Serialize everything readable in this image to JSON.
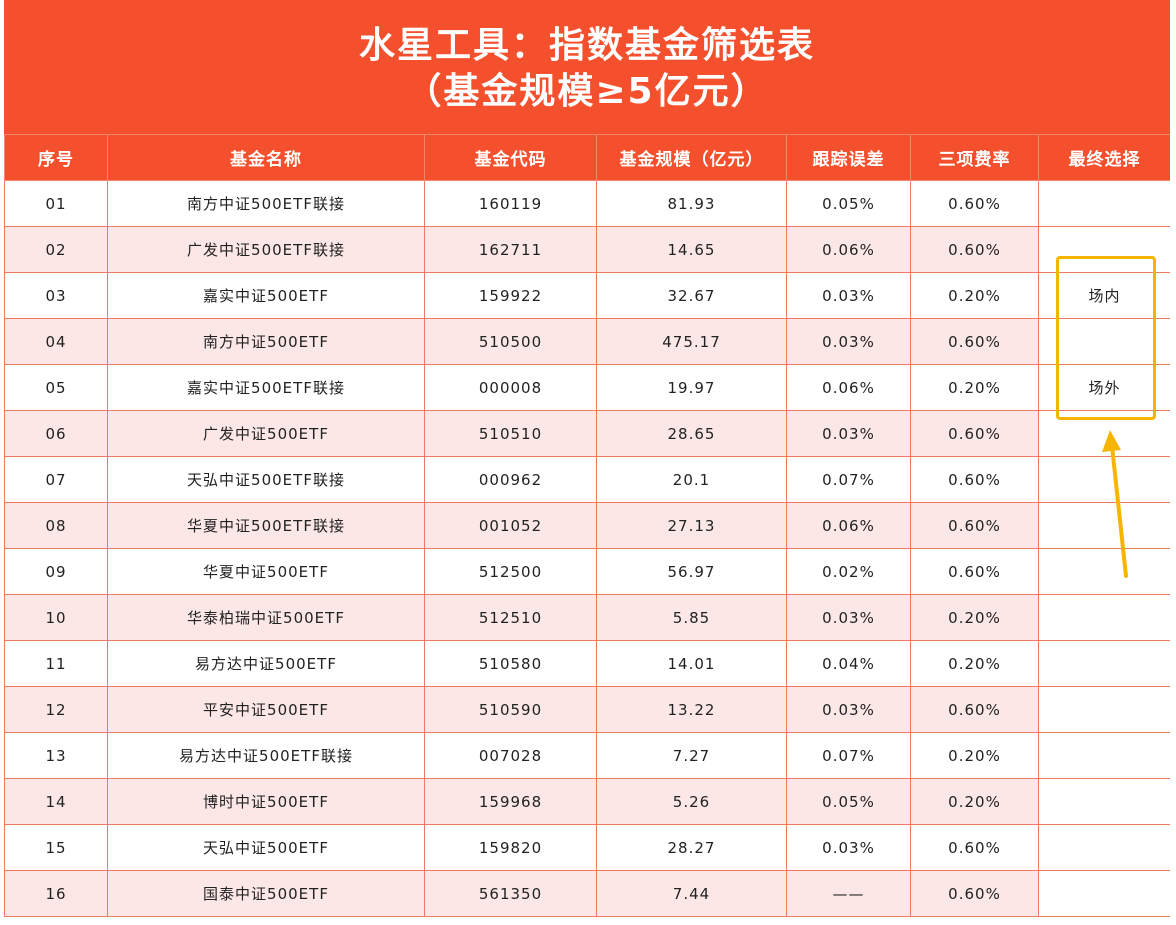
{
  "title": {
    "line1": "水星工具：指数基金筛选表",
    "line2": "（基金规模≥5亿元）"
  },
  "columns": [
    "序号",
    "基金名称",
    "基金代码",
    "基金规模（亿元）",
    "跟踪误差",
    "三项费率",
    "最终选择"
  ],
  "rows": [
    {
      "no": "01",
      "name": "南方中证500ETF联接",
      "code": "160119",
      "size": "81.93",
      "error": "0.05%",
      "fee": "0.60%",
      "choice": ""
    },
    {
      "no": "02",
      "name": "广发中证500ETF联接",
      "code": "162711",
      "size": "14.65",
      "error": "0.06%",
      "fee": "0.60%",
      "choice": ""
    },
    {
      "no": "03",
      "name": "嘉实中证500ETF",
      "code": "159922",
      "size": "32.67",
      "error": "0.03%",
      "fee": "0.20%",
      "choice": "场内"
    },
    {
      "no": "04",
      "name": "南方中证500ETF",
      "code": "510500",
      "size": "475.17",
      "error": "0.03%",
      "fee": "0.60%",
      "choice": ""
    },
    {
      "no": "05",
      "name": "嘉实中证500ETF联接",
      "code": "000008",
      "size": "19.97",
      "error": "0.06%",
      "fee": "0.20%",
      "choice": "场外"
    },
    {
      "no": "06",
      "name": "广发中证500ETF",
      "code": "510510",
      "size": "28.65",
      "error": "0.03%",
      "fee": "0.60%",
      "choice": ""
    },
    {
      "no": "07",
      "name": "天弘中证500ETF联接",
      "code": "000962",
      "size": "20.1",
      "error": "0.07%",
      "fee": "0.60%",
      "choice": ""
    },
    {
      "no": "08",
      "name": "华夏中证500ETF联接",
      "code": "001052",
      "size": "27.13",
      "error": "0.06%",
      "fee": "0.60%",
      "choice": ""
    },
    {
      "no": "09",
      "name": "华夏中证500ETF",
      "code": "512500",
      "size": "56.97",
      "error": "0.02%",
      "fee": "0.60%",
      "choice": ""
    },
    {
      "no": "10",
      "name": "华泰柏瑞中证500ETF",
      "code": "512510",
      "size": "5.85",
      "error": "0.03%",
      "fee": "0.20%",
      "choice": ""
    },
    {
      "no": "11",
      "name": "易方达中证500ETF",
      "code": "510580",
      "size": "14.01",
      "error": "0.04%",
      "fee": "0.20%",
      "choice": ""
    },
    {
      "no": "12",
      "name": "平安中证500ETF",
      "code": "510590",
      "size": "13.22",
      "error": "0.03%",
      "fee": "0.60%",
      "choice": ""
    },
    {
      "no": "13",
      "name": "易方达中证500ETF联接",
      "code": "007028",
      "size": "7.27",
      "error": "0.07%",
      "fee": "0.20%",
      "choice": ""
    },
    {
      "no": "14",
      "name": "博时中证500ETF",
      "code": "159968",
      "size": "5.26",
      "error": "0.05%",
      "fee": "0.20%",
      "choice": ""
    },
    {
      "no": "15",
      "name": "天弘中证500ETF",
      "code": "159820",
      "size": "28.27",
      "error": "0.03%",
      "fee": "0.60%",
      "choice": ""
    },
    {
      "no": "16",
      "name": "国泰中证500ETF",
      "code": "561350",
      "size": "7.44",
      "error": "——",
      "fee": "0.60%",
      "choice": ""
    }
  ],
  "colors": {
    "header": "#f5502d",
    "stripe": "#fbe7e6",
    "highlight": "#f7b500"
  },
  "icons": [
    "arrow-up-icon"
  ]
}
